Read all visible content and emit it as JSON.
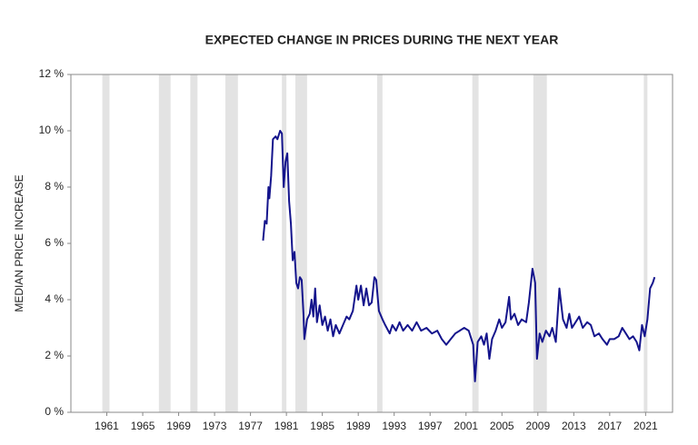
{
  "chart_data": {
    "type": "line",
    "title": "EXPECTED CHANGE IN PRICES DURING THE NEXT YEAR",
    "ylabel": "MEDIAN PRICE INCREASE",
    "xlim": [
      1957,
      2024
    ],
    "xticks": [
      1961,
      1965,
      1969,
      1973,
      1977,
      1981,
      1985,
      1989,
      1993,
      1997,
      2001,
      2005,
      2009,
      2013,
      2017,
      2021
    ],
    "ylim": [
      0,
      12
    ],
    "yticks": [
      {
        "value": 0,
        "label": "0 %"
      },
      {
        "value": 2,
        "label": "2 %"
      },
      {
        "value": 4,
        "label": "4 %"
      },
      {
        "value": 6,
        "label": "6 %"
      },
      {
        "value": 8,
        "label": "8 %"
      },
      {
        "value": 10,
        "label": "10 %"
      },
      {
        "value": 12,
        "label": "12 %"
      }
    ],
    "shaded_periods": [
      [
        1960.5,
        1961.3
      ],
      [
        1966.8,
        1968.1
      ],
      [
        1970.3,
        1971.1
      ],
      [
        1974.2,
        1975.6
      ],
      [
        1980.5,
        1981.0
      ],
      [
        1982.0,
        1983.3
      ],
      [
        1991.1,
        1991.7
      ],
      [
        2001.7,
        2002.4
      ],
      [
        2008.5,
        2010.0
      ],
      [
        2020.8,
        2021.2
      ]
    ],
    "shade_color": "#e3e3e3",
    "series": [
      {
        "color": "#14148c",
        "x": [
          1978.4,
          1978.6,
          1978.8,
          1979.0,
          1979.1,
          1979.3,
          1979.5,
          1979.8,
          1980.0,
          1980.3,
          1980.5,
          1980.7,
          1980.9,
          1981.1,
          1981.3,
          1981.5,
          1981.7,
          1981.9,
          1982.1,
          1982.3,
          1982.5,
          1982.7,
          1982.9,
          1983.0,
          1983.3,
          1983.6,
          1983.8,
          1984.0,
          1984.2,
          1984.4,
          1984.7,
          1985.0,
          1985.3,
          1985.6,
          1985.9,
          1986.2,
          1986.5,
          1986.9,
          1987.3,
          1987.7,
          1988.0,
          1988.4,
          1988.8,
          1989.0,
          1989.3,
          1989.6,
          1989.9,
          1990.2,
          1990.5,
          1990.8,
          1991.0,
          1991.3,
          1991.7,
          1992.0,
          1992.5,
          1992.8,
          1993.2,
          1993.6,
          1994.0,
          1994.5,
          1995.0,
          1995.5,
          1996.0,
          1996.6,
          1997.2,
          1997.8,
          1998.3,
          1998.8,
          1999.3,
          1999.8,
          2000.3,
          2000.8,
          2001.3,
          2001.8,
          2002.0,
          2002.3,
          2002.7,
          2003.0,
          2003.3,
          2003.6,
          2003.9,
          2004.3,
          2004.7,
          2005.0,
          2005.4,
          2005.8,
          2006.0,
          2006.4,
          2006.8,
          2007.2,
          2007.7,
          2008.0,
          2008.4,
          2008.7,
          2008.9,
          2009.2,
          2009.5,
          2009.9,
          2010.3,
          2010.6,
          2011.0,
          2011.4,
          2011.8,
          2012.2,
          2012.5,
          2012.8,
          2013.2,
          2013.6,
          2014.0,
          2014.5,
          2014.9,
          2015.3,
          2015.8,
          2016.2,
          2016.7,
          2017.0,
          2017.5,
          2018.0,
          2018.4,
          2018.8,
          2019.2,
          2019.6,
          2020.0,
          2020.3,
          2020.6,
          2020.9,
          2021.2,
          2021.5,
          2021.8,
          2022.0
        ],
        "values": [
          6.1,
          6.8,
          6.7,
          8.0,
          7.6,
          8.4,
          9.7,
          9.8,
          9.7,
          10.0,
          9.9,
          8.0,
          8.9,
          9.2,
          7.5,
          6.7,
          5.4,
          5.7,
          4.6,
          4.4,
          4.8,
          4.7,
          3.5,
          2.6,
          3.3,
          3.5,
          4.0,
          3.4,
          4.4,
          3.2,
          3.8,
          3.1,
          3.4,
          2.9,
          3.3,
          2.7,
          3.1,
          2.8,
          3.1,
          3.4,
          3.3,
          3.6,
          4.5,
          4.0,
          4.5,
          3.8,
          4.4,
          3.8,
          3.9,
          4.8,
          4.7,
          3.6,
          3.3,
          3.1,
          2.8,
          3.1,
          2.9,
          3.2,
          2.9,
          3.1,
          2.9,
          3.2,
          2.9,
          3.0,
          2.8,
          2.9,
          2.6,
          2.4,
          2.6,
          2.8,
          2.9,
          3.0,
          2.9,
          2.4,
          1.1,
          2.5,
          2.7,
          2.4,
          2.8,
          1.9,
          2.6,
          2.9,
          3.3,
          3.0,
          3.2,
          4.1,
          3.3,
          3.5,
          3.1,
          3.3,
          3.2,
          3.9,
          5.1,
          4.6,
          1.9,
          2.8,
          2.5,
          2.9,
          2.7,
          3.0,
          2.5,
          4.4,
          3.3,
          3.0,
          3.5,
          3.0,
          3.2,
          3.4,
          3.0,
          3.2,
          3.1,
          2.7,
          2.8,
          2.6,
          2.4,
          2.6,
          2.6,
          2.7,
          3.0,
          2.8,
          2.6,
          2.7,
          2.5,
          2.2,
          3.1,
          2.7,
          3.3,
          4.4,
          4.6,
          4.8
        ]
      }
    ]
  }
}
